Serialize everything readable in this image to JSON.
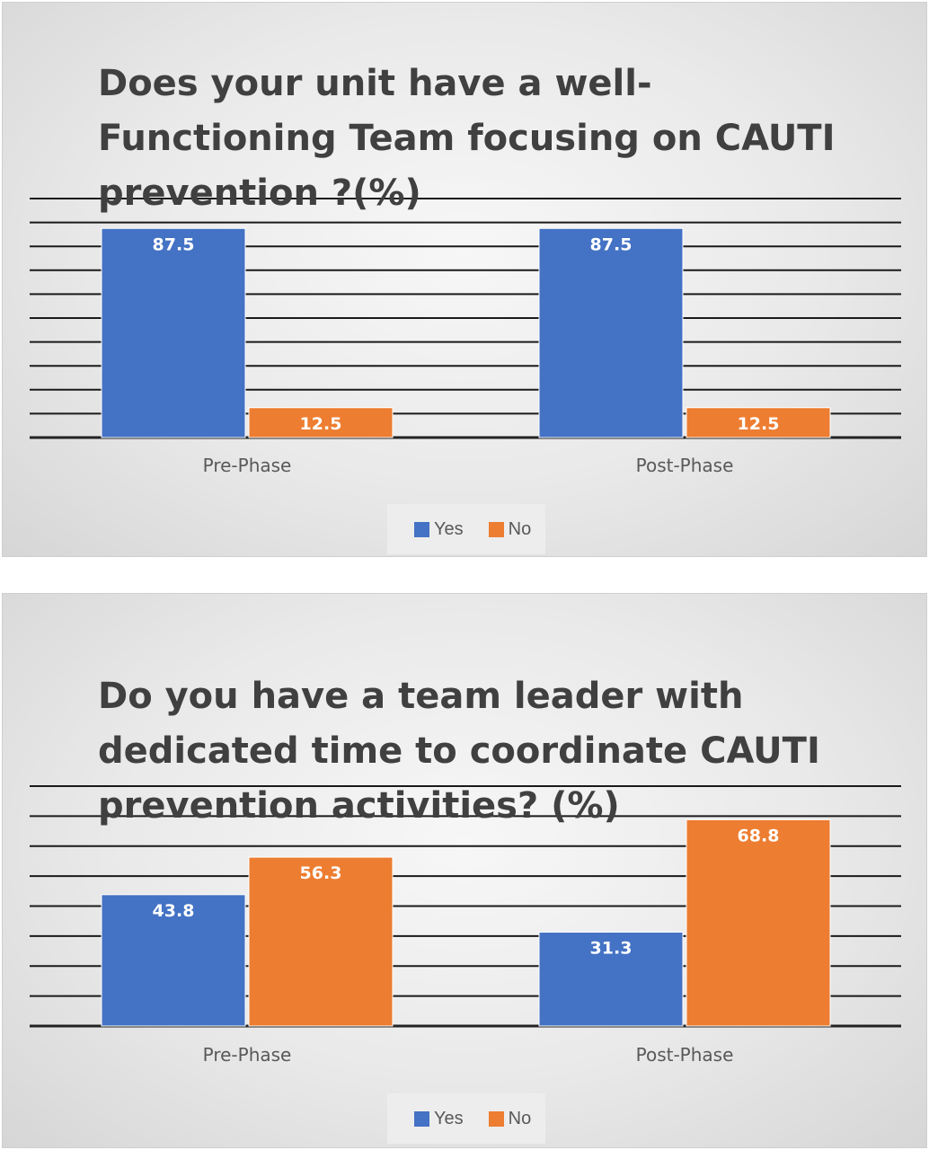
{
  "chart_data": [
    {
      "type": "bar",
      "title": "Does your unit have a well-Functioning Team focusing on CAUTI prevention ?(%)",
      "categories": [
        "Pre-Phase",
        "Post-Phase"
      ],
      "series": [
        {
          "name": "Yes",
          "values": [
            87.5,
            87.5
          ],
          "color": "#4472C4"
        },
        {
          "name": "No",
          "values": [
            12.5,
            12.5
          ],
          "color": "#ED7D31"
        }
      ],
      "data_labels": [
        [
          "87.5",
          "87.5"
        ],
        [
          "12.5",
          "12.5"
        ]
      ],
      "ylim": [
        0,
        100
      ],
      "grid": true,
      "legend_position": "bottom"
    },
    {
      "type": "bar",
      "title": "Do you have a team leader with dedicated time to coordinate CAUTI prevention activities? (%)",
      "categories": [
        "Pre-Phase",
        "Post-Phase"
      ],
      "series": [
        {
          "name": "Yes",
          "values": [
            43.8,
            31.3
          ],
          "color": "#4472C4"
        },
        {
          "name": "No",
          "values": [
            56.3,
            68.8
          ],
          "color": "#ED7D31"
        }
      ],
      "data_labels": [
        [
          "43.8",
          "31.3"
        ],
        [
          "56.3",
          "68.8"
        ]
      ],
      "ylim": [
        0,
        80
      ],
      "grid": true,
      "legend_position": "bottom"
    }
  ]
}
